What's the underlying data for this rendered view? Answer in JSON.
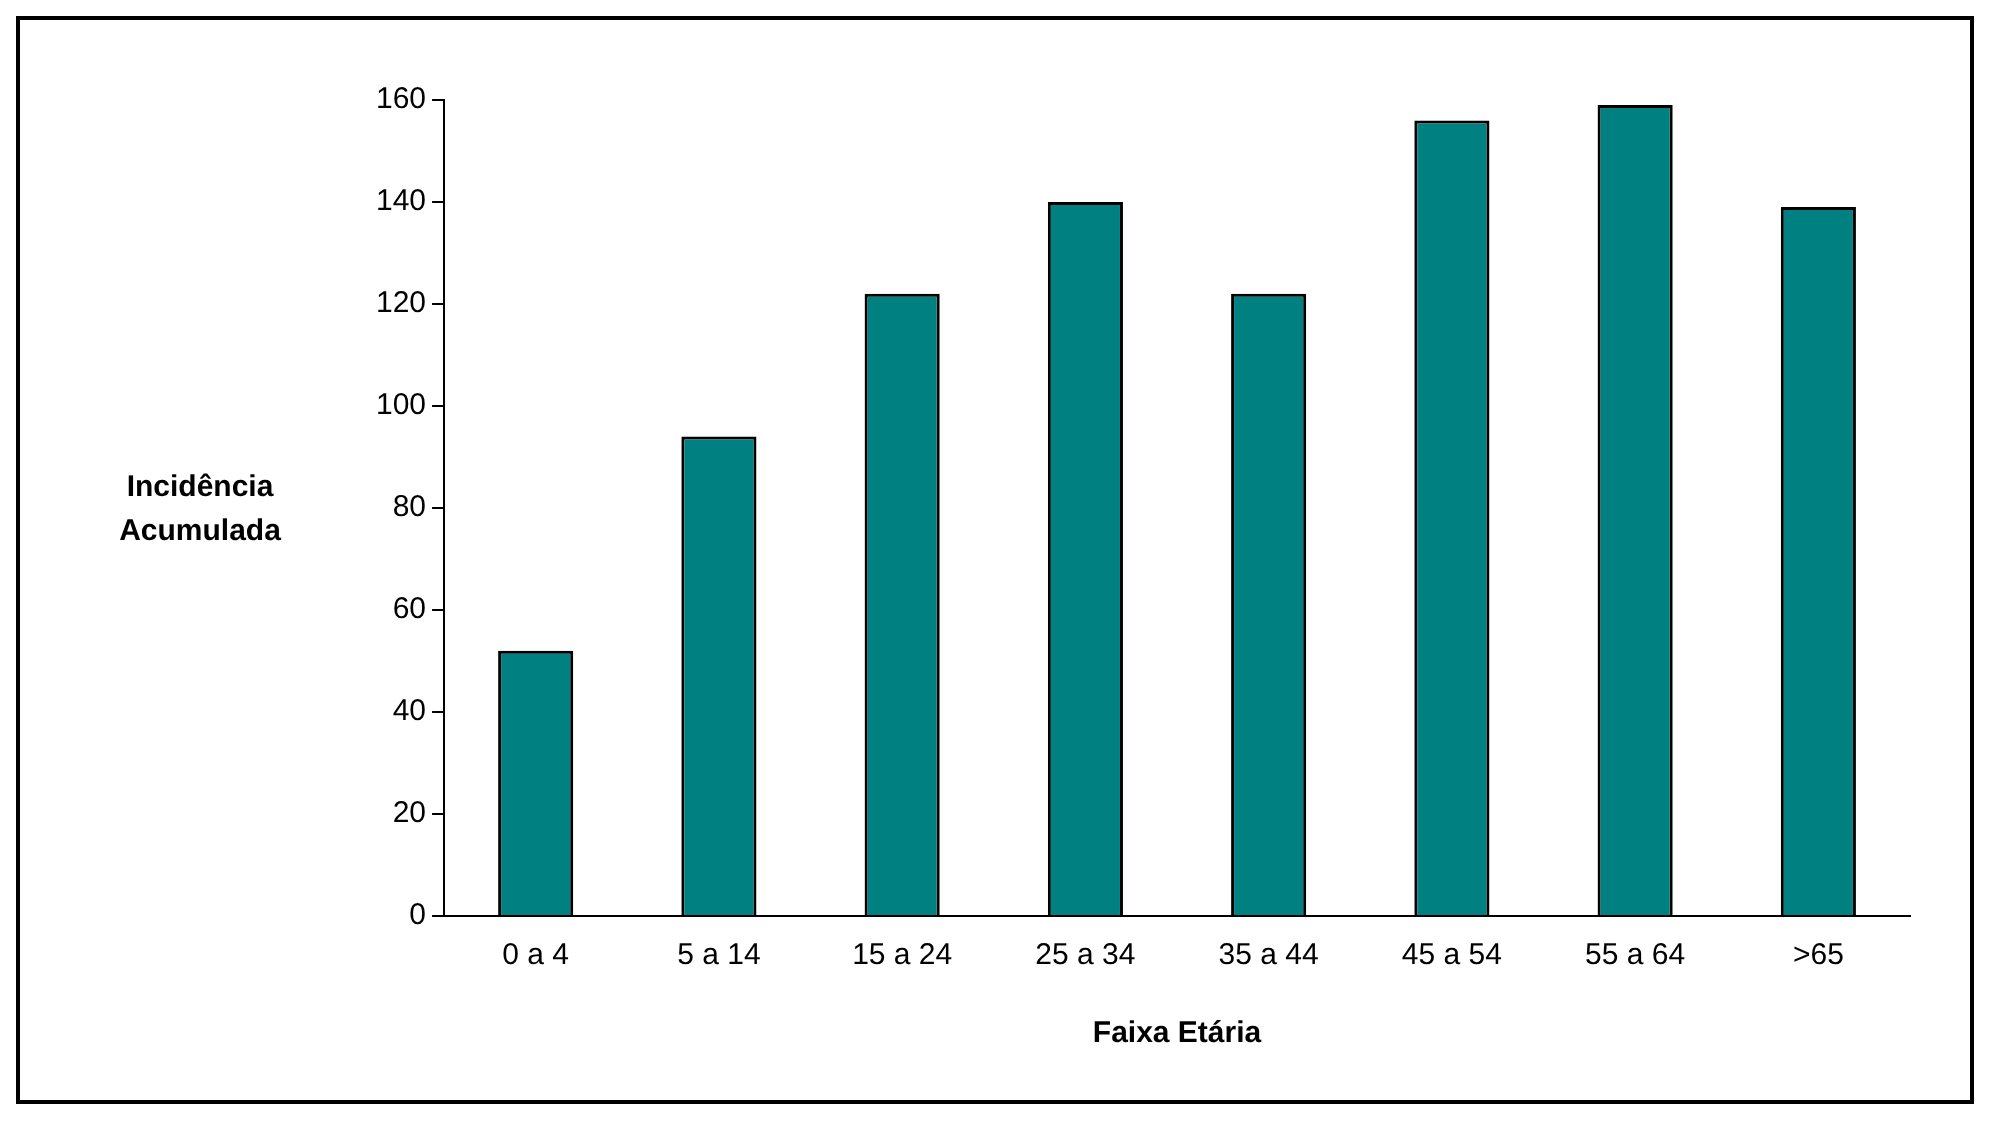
{
  "chart_data": {
    "type": "bar",
    "xlabel": "Faixa Etária",
    "ylabel": "Incidência Acumulada",
    "categories": [
      "0 a 4",
      "5 a 14",
      "15 a 24",
      "25 a 34",
      "35 a 44",
      "45 a 54",
      "55 a 64",
      ">65"
    ],
    "values": [
      52,
      94,
      122,
      140,
      122,
      156,
      159,
      139
    ],
    "color": "#008080",
    "ylim": [
      0,
      160
    ],
    "yticks": [
      0,
      20,
      40,
      60,
      80,
      100,
      120,
      140,
      160
    ],
    "grid": false,
    "legend": false
  }
}
